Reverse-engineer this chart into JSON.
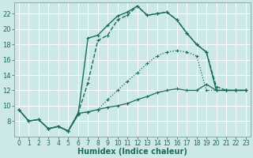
{
  "xlabel": "Humidex (Indice chaleur)",
  "bg_color": "#cde8e8",
  "grid_color": "#c8dede",
  "line_color": "#1a6b5a",
  "xlim": [
    -0.5,
    23.5
  ],
  "ylim": [
    6,
    23.5
  ],
  "xticks": [
    0,
    1,
    2,
    3,
    4,
    5,
    6,
    7,
    8,
    9,
    10,
    11,
    12,
    13,
    14,
    15,
    16,
    17,
    18,
    19,
    20,
    21,
    22,
    23
  ],
  "yticks": [
    8,
    10,
    12,
    14,
    16,
    18,
    20,
    22
  ],
  "series": [
    {
      "x": [
        0,
        1,
        2,
        3,
        4,
        5,
        6,
        7,
        8,
        9,
        10,
        11,
        12,
        13,
        14,
        15,
        16,
        17,
        18,
        19,
        20,
        21,
        22,
        23
      ],
      "y": [
        9.5,
        8.0,
        8.2,
        7.0,
        7.3,
        6.7,
        8.8,
        18.8,
        19.2,
        20.5,
        21.7,
        22.2,
        23.0,
        21.8,
        22.0,
        22.2,
        21.2,
        19.5,
        18.0,
        17.0,
        12.0,
        12.0,
        12.0,
        12.0
      ],
      "style": "solid",
      "marker": true,
      "lw": 1.0
    },
    {
      "x": [
        0,
        1,
        2,
        3,
        4,
        5,
        6,
        7,
        8,
        9,
        10,
        11,
        12,
        13,
        14,
        15,
        16,
        17,
        18,
        19,
        20,
        21,
        22,
        23
      ],
      "y": [
        9.5,
        8.0,
        8.2,
        7.0,
        7.3,
        6.7,
        9.0,
        9.2,
        9.5,
        10.8,
        12.0,
        13.2,
        14.3,
        15.5,
        16.5,
        17.0,
        17.2,
        17.0,
        16.5,
        12.0,
        12.0,
        12.0,
        12.0,
        12.0
      ],
      "style": "dotted",
      "marker": true,
      "lw": 0.9
    },
    {
      "x": [
        0,
        1,
        2,
        3,
        4,
        5,
        6,
        7,
        8,
        9,
        10,
        11,
        12,
        13,
        14,
        15,
        16,
        17,
        18,
        19,
        20,
        21,
        22,
        23
      ],
      "y": [
        9.5,
        8.0,
        8.2,
        7.0,
        7.3,
        6.7,
        9.0,
        9.2,
        9.5,
        9.8,
        10.0,
        10.3,
        10.8,
        11.2,
        11.7,
        12.0,
        12.2,
        12.0,
        12.0,
        12.8,
        12.0,
        12.0,
        12.0,
        12.0
      ],
      "style": "solid",
      "marker": true,
      "lw": 0.9
    },
    {
      "x": [
        3,
        4,
        5,
        6,
        7,
        8,
        9,
        10,
        11,
        12,
        13,
        14,
        15,
        16,
        17,
        18,
        19,
        20,
        21,
        22,
        23
      ],
      "y": [
        7.0,
        7.3,
        6.7,
        9.0,
        13.0,
        18.5,
        19.2,
        21.2,
        21.8,
        23.0,
        21.8,
        22.0,
        22.2,
        21.2,
        19.5,
        18.0,
        17.0,
        12.5,
        12.0,
        12.0,
        12.0
      ],
      "style": "dashed",
      "marker": true,
      "lw": 1.0
    }
  ],
  "marker_size": 3.5
}
